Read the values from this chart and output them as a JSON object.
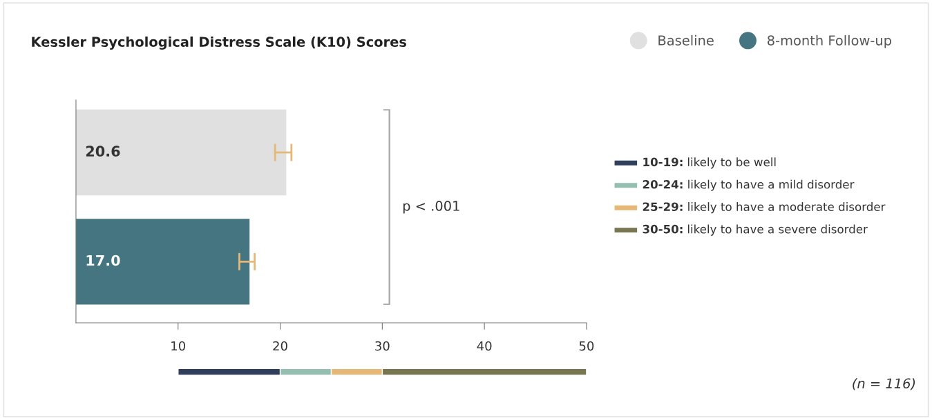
{
  "chart_data": {
    "type": "bar",
    "orientation": "horizontal",
    "title": "Kessler Psychological Distress Scale (K10) Scores",
    "categories": [
      null,
      null
    ],
    "series": [
      {
        "name": "Baseline",
        "color": "#e0e0e0",
        "values": [
          20.6,
          null
        ],
        "value_labels": [
          "20.6",
          null
        ],
        "errors": [
          [
            19.5,
            21.1
          ],
          null
        ]
      },
      {
        "name": "8-month Follow-up",
        "color": "#467582",
        "values": [
          null,
          17.0
        ],
        "value_labels": [
          null,
          "17.0"
        ],
        "errors": [
          null,
          [
            16.0,
            17.5
          ]
        ]
      }
    ],
    "xlim": [
      0,
      50
    ],
    "xticks": [
      10,
      20,
      30,
      40,
      50
    ],
    "legend": "top right",
    "grid": false,
    "annotations": [
      "p < .001",
      "(n = 116)",
      "10-19: likely to be well",
      "20-24: likely to have a mild disorder",
      "25-29: likely to have a moderate disorder",
      "30-50: likely to have a severe disorder"
    ]
  }
}
